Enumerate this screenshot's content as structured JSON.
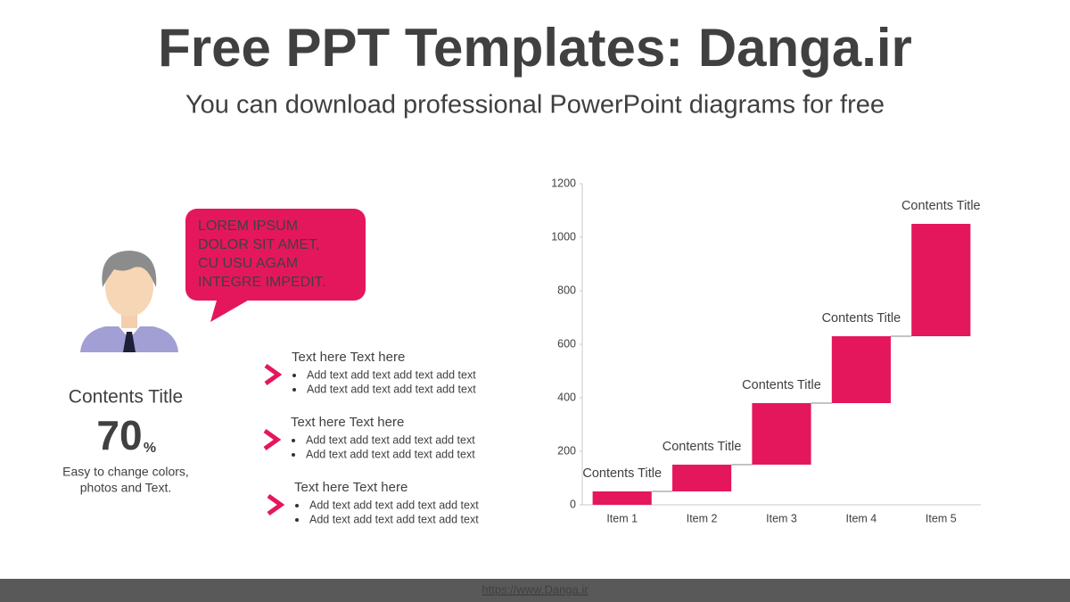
{
  "header": {
    "title": "Free PPT Templates: Danga.ir",
    "subtitle": "You can download professional PowerPoint diagrams for free"
  },
  "bubble": {
    "lines": [
      "LOREM IPSUM",
      "DOLOR SIT AMET,",
      "CU USU AGAM",
      "INTEGRE IMPEDIT."
    ]
  },
  "profile": {
    "title": "Contents Title",
    "stat": 70,
    "stat_unit": "%",
    "description": [
      "Easy to change colors,",
      "photos and Text."
    ]
  },
  "list": [
    {
      "heading": "Text here Text here",
      "bullets": [
        "Add text add text add text add text",
        "Add text add text add text add text"
      ]
    },
    {
      "heading": "Text here Text here",
      "bullets": [
        "Add text add text add text add text",
        "Add text add text add text add text"
      ]
    },
    {
      "heading": "Text here Text here",
      "bullets": [
        "Add text add text add text add text",
        "Add text add text add text add text"
      ]
    }
  ],
  "footer": {
    "link": "https://www.Danga.ir"
  },
  "chart_data": {
    "type": "waterfall",
    "categories": [
      "Item 1",
      "Item 2",
      "Item 3",
      "Item 4",
      "Item 5"
    ],
    "values": [
      50,
      100,
      230,
      250,
      420
    ],
    "annotations": [
      "Contents Title",
      "Contents Title",
      "Contents Title",
      "Contents Title",
      "Contents Title"
    ],
    "color": "#e5175c",
    "ylim": [
      0,
      1200
    ],
    "yticks": [
      0,
      200,
      400,
      600,
      800,
      1000,
      1200
    ],
    "grid": false
  }
}
